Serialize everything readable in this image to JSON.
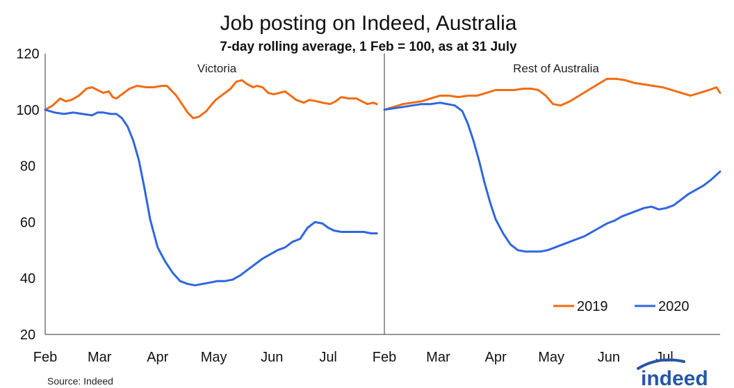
{
  "chart_data": {
    "type": "line",
    "title": "Job posting on Indeed, Australia",
    "subtitle": "7-day rolling average, 1 Feb = 100, as at 31 July",
    "ylim": [
      20,
      120
    ],
    "yticks": [
      20,
      40,
      60,
      80,
      100,
      120
    ],
    "xlim": [
      0,
      181
    ],
    "xtick_labels": [
      "Feb",
      "Mar",
      "Apr",
      "May",
      "Jun",
      "Jul"
    ],
    "xtick_positions": [
      0,
      29,
      60,
      90,
      121,
      151
    ],
    "legend_position": "bottom-right",
    "colors": {
      "2019": "#f26b12",
      "2020": "#2f66de"
    },
    "panels": [
      {
        "label": "Victoria",
        "series": [
          {
            "name": "2019",
            "x": [
              0,
              4,
              8,
              11,
              14,
              18,
              22,
              25,
              28,
              31,
              34,
              36,
              38,
              41,
              45,
              49,
              54,
              58,
              62,
              65,
              70,
              73,
              76,
              79,
              82,
              86,
              89,
              91,
              93,
              96,
              99,
              102,
              105,
              108,
              111,
              113,
              116,
              119,
              122,
              125,
              128,
              131,
              134,
              138,
              141,
              145,
              148,
              152,
              155,
              158,
              162,
              166,
              169,
              172,
              175,
              177
            ],
            "values": [
              100,
              101.5,
              104,
              103,
              103.5,
              105,
              107.5,
              108,
              107,
              106,
              106.5,
              104.5,
              104,
              105.5,
              107.5,
              108.5,
              108,
              108,
              108.5,
              108.5,
              105,
              102,
              99,
              97,
              97.5,
              99.5,
              102,
              103.5,
              104.5,
              106,
              107.5,
              110,
              110.5,
              109,
              108,
              108.5,
              108,
              106,
              105.5,
              106,
              106.5,
              105,
              103.5,
              102.5,
              103.5,
              103,
              102.5,
              102,
              103,
              104.5,
              104,
              104,
              103,
              102,
              102.5,
              102
            ]
          },
          {
            "name": "2020",
            "x": [
              0,
              5,
              10,
              15,
              20,
              25,
              28,
              31,
              35,
              38,
              41,
              44,
              47,
              50,
              53,
              56,
              60,
              64,
              68,
              72,
              76,
              80,
              84,
              88,
              92,
              96,
              100,
              104,
              108,
              112,
              116,
              120,
              124,
              128,
              132,
              136,
              140,
              144,
              148,
              151,
              154,
              158,
              162,
              166,
              170,
              174,
              177
            ],
            "values": [
              100,
              99,
              98.5,
              99,
              98.5,
              98,
              99,
              99,
              98.5,
              98.5,
              97,
              94,
              89,
              82,
              72,
              61,
              51,
              46,
              42,
              39,
              38,
              37.5,
              38,
              38.5,
              39,
              39,
              39.5,
              41,
              43,
              45,
              47,
              48.5,
              50,
              51,
              53,
              54,
              58,
              60,
              59.5,
              58,
              57,
              56.5,
              56.5,
              56.5,
              56.5,
              56,
              56
            ]
          }
        ]
      },
      {
        "label": "Rest of Australia",
        "series": [
          {
            "name": "2019",
            "x": [
              0,
              5,
              10,
              15,
              20,
              25,
              30,
              35,
              40,
              45,
              50,
              55,
              60,
              65,
              70,
              75,
              79,
              83,
              87,
              91,
              95,
              100,
              105,
              110,
              115,
              120,
              125,
              130,
              135,
              140,
              145,
              150,
              155,
              160,
              165,
              170,
              175,
              179,
              181
            ],
            "values": [
              100,
              101,
              102,
              102.5,
              103,
              104,
              105,
              105,
              104.5,
              105,
              105,
              106,
              107,
              107,
              107,
              107.5,
              107.5,
              107,
              105,
              102,
              101.5,
              103,
              105,
              107,
              109,
              111,
              111,
              110.5,
              109.5,
              109,
              108.5,
              108,
              107,
              106,
              105,
              106,
              107,
              108,
              106
            ]
          },
          {
            "name": "2020",
            "x": [
              0,
              5,
              10,
              15,
              20,
              25,
              30,
              34,
              38,
              42,
              45,
              48,
              51,
              54,
              57,
              60,
              64,
              68,
              72,
              76,
              80,
              84,
              88,
              92,
              96,
              100,
              104,
              108,
              112,
              116,
              120,
              124,
              128,
              132,
              136,
              140,
              144,
              148,
              152,
              156,
              160,
              164,
              168,
              172,
              176,
              181
            ],
            "values": [
              100,
              100.5,
              101,
              101.5,
              102,
              102,
              102.5,
              102,
              101.5,
              99.5,
              95,
              89,
              82,
              74,
              67,
              61,
              56,
              52,
              50,
              49.5,
              49.5,
              49.5,
              50,
              51,
              52,
              53,
              54,
              55,
              56.5,
              58,
              59.5,
              60.5,
              62,
              63,
              64,
              65,
              65.5,
              64.5,
              65,
              66,
              68,
              70,
              71.5,
              73,
              75,
              78
            ]
          }
        ]
      }
    ],
    "source": "Source: Indeed"
  },
  "branding": {
    "logo_text": "indeed"
  }
}
